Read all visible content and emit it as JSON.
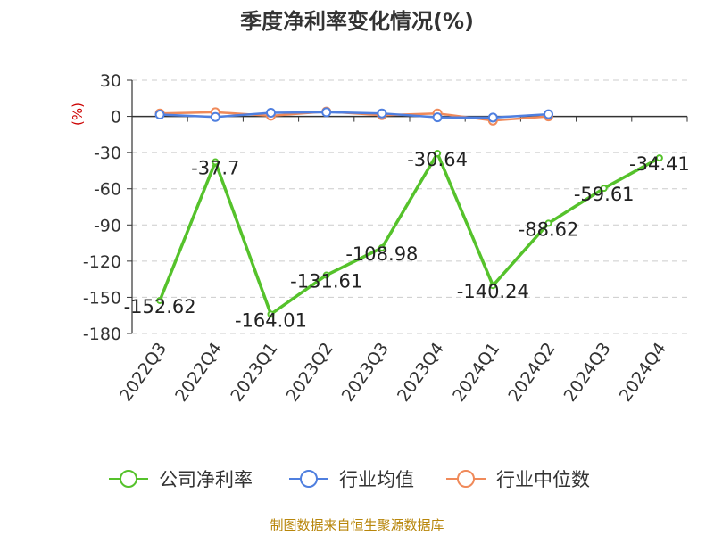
{
  "chart_data": {
    "type": "line",
    "title": "季度净利率变化情况(%)",
    "ylabel": "(%)",
    "xlabel": "",
    "categories": [
      "2022Q3",
      "2022Q4",
      "2023Q1",
      "2023Q2",
      "2023Q3",
      "2023Q4",
      "2024Q1",
      "2024Q2",
      "2024Q3",
      "2024Q4"
    ],
    "ylim": [
      -180,
      30
    ],
    "yticks": [
      30,
      0,
      -30,
      -60,
      -90,
      -120,
      -150,
      -180
    ],
    "grid": true,
    "legend_position": "bottom",
    "series": [
      {
        "name": "公司净利率",
        "color": "#55c22b",
        "values": [
          -152.62,
          -37.7,
          -164.01,
          -131.61,
          -108.98,
          -30.64,
          -140.24,
          -88.62,
          -59.61,
          -34.41
        ],
        "labels": [
          "-152.62",
          "-37.7",
          "-164.01",
          "-131.61",
          "-108.98",
          "-30.64",
          "-140.24",
          "-88.62",
          "-59.61",
          "-34.41"
        ]
      },
      {
        "name": "行业均值",
        "color": "#4f7fdf",
        "values": [
          1.5,
          -0.5,
          3.0,
          3.5,
          2.5,
          -0.8,
          -1.0,
          1.8,
          null,
          null
        ]
      },
      {
        "name": "行业中位数",
        "color": "#f08a5a",
        "values": [
          2.5,
          3.5,
          0.5,
          4.0,
          1.0,
          2.5,
          -3.5,
          0.0,
          null,
          null
        ]
      }
    ],
    "source": "制图数据来自恒生聚源数据库"
  }
}
